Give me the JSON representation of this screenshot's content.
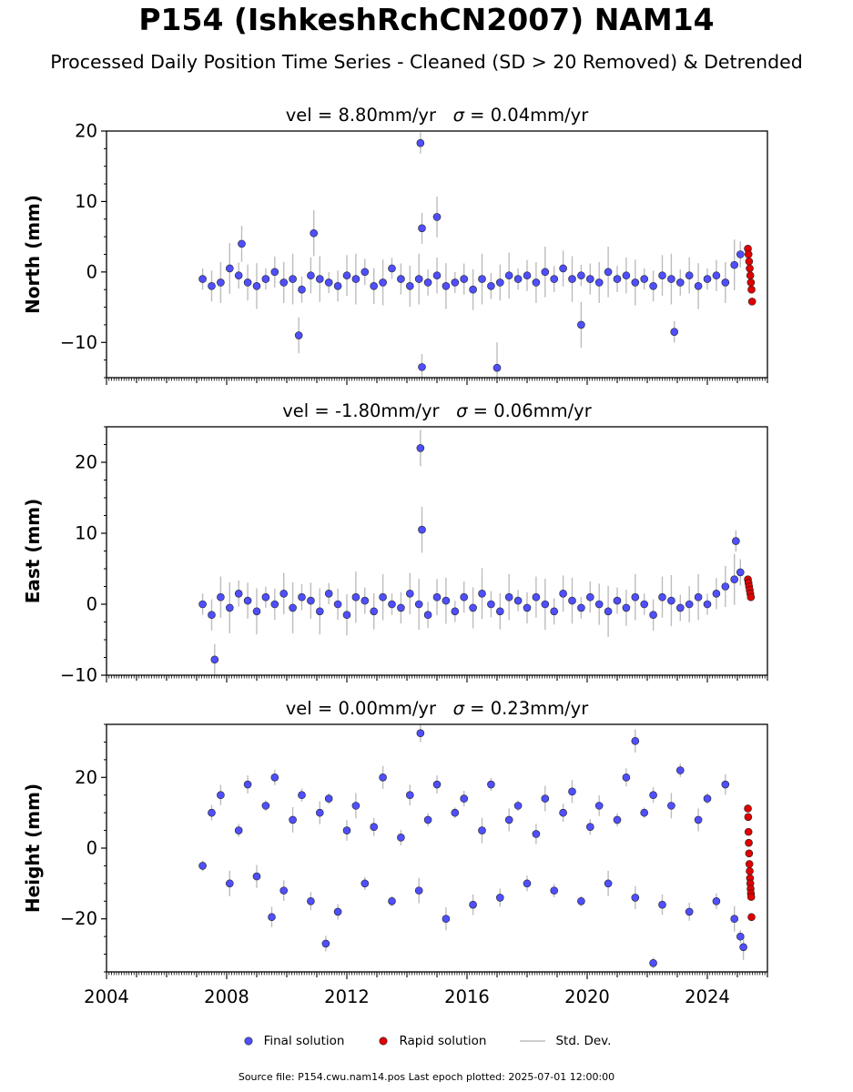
{
  "title": "P154 (IshkeshRchCN2007) NAM14",
  "subtitle": "Processed Daily Position Time Series - Cleaned (SD > 20 Removed) & Detrended",
  "source_line": "Source file: P154.cwu.nam14.pos  Last epoch plotted: 2025-07-01 12:00:00",
  "legend": {
    "final": "Final solution",
    "rapid": "Rapid solution",
    "std": "Std. Dev."
  },
  "colors": {
    "final": "#4f4fff",
    "final_edge": "#202020",
    "rapid": "#e00000",
    "std": "#bdbdbd"
  },
  "chart_data": [
    {
      "type": "scatter",
      "panel": "north",
      "title_prefix": "vel = 8.80mm/yr",
      "sigma_text": " = 0.04mm/yr",
      "ylabel": "North (mm)",
      "xlim": [
        2004,
        2026
      ],
      "ylim": [
        -15,
        20
      ],
      "yticks": [
        "−10",
        "0",
        "10",
        "20"
      ],
      "ytick_values": [
        -10,
        0,
        10,
        20
      ],
      "series": [
        {
          "name": "Final solution",
          "x": [
            2007.2,
            2007.5,
            2007.8,
            2008.1,
            2008.4,
            2008.7,
            2009.0,
            2009.3,
            2009.6,
            2009.9,
            2010.2,
            2010.5,
            2010.8,
            2011.1,
            2011.4,
            2011.7,
            2012.0,
            2012.3,
            2012.6,
            2012.9,
            2013.2,
            2013.5,
            2013.8,
            2014.1,
            2014.4,
            2014.7,
            2015.0,
            2015.3,
            2015.6,
            2015.9,
            2016.2,
            2016.5,
            2016.8,
            2017.1,
            2017.4,
            2017.7,
            2018.0,
            2018.3,
            2018.6,
            2018.9,
            2019.2,
            2019.5,
            2019.8,
            2020.1,
            2020.4,
            2020.7,
            2021.0,
            2021.3,
            2021.6,
            2021.9,
            2022.2,
            2022.5,
            2022.8,
            2023.1,
            2023.4,
            2023.7,
            2024.0,
            2024.3,
            2024.6,
            2024.9,
            2025.1,
            2008.5,
            2010.9,
            2014.45,
            2014.5,
            2015.0,
            2017.0,
            2014.5,
            2010.4,
            2019.8,
            2022.9
          ],
          "y": [
            -1.0,
            -2.0,
            -1.5,
            0.5,
            -0.5,
            -1.5,
            -2.0,
            -1.0,
            0.0,
            -1.5,
            -1.0,
            -2.5,
            -0.5,
            -1.0,
            -1.5,
            -2.0,
            -0.5,
            -1.0,
            0.0,
            -2.0,
            -1.5,
            0.5,
            -1.0,
            -2.0,
            -1.0,
            -1.5,
            -0.5,
            -2.0,
            -1.5,
            -1.0,
            -2.5,
            -1.0,
            -2.0,
            -1.5,
            -0.5,
            -1.0,
            -0.5,
            -1.5,
            0.0,
            -1.0,
            0.5,
            -1.0,
            -0.5,
            -1.0,
            -1.5,
            0.0,
            -1.0,
            -0.5,
            -1.5,
            -1.0,
            -2.0,
            -0.5,
            -1.0,
            -1.5,
            -0.5,
            -2.0,
            -1.0,
            -0.5,
            -1.5,
            1.0,
            2.5,
            4.0,
            5.5,
            18.3,
            6.2,
            7.8,
            -13.6,
            -13.5,
            -9.0,
            -7.5,
            -8.5
          ]
        },
        {
          "name": "Rapid solution",
          "x": [
            2025.35,
            2025.37,
            2025.39,
            2025.41,
            2025.43,
            2025.45,
            2025.47,
            2025.49
          ],
          "y": [
            3.3,
            2.5,
            1.5,
            0.5,
            -0.5,
            -1.5,
            -2.5,
            -4.2
          ]
        }
      ]
    },
    {
      "type": "scatter",
      "panel": "east",
      "title_prefix": "vel = -1.80mm/yr",
      "sigma_text": " = 0.06mm/yr",
      "ylabel": "East (mm)",
      "xlim": [
        2004,
        2026
      ],
      "ylim": [
        -10,
        25
      ],
      "yticks": [
        "−10",
        "0",
        "10",
        "20"
      ],
      "ytick_values": [
        -10,
        0,
        10,
        20
      ],
      "series": [
        {
          "name": "Final solution",
          "x": [
            2007.2,
            2007.5,
            2007.8,
            2008.1,
            2008.4,
            2008.7,
            2009.0,
            2009.3,
            2009.6,
            2009.9,
            2010.2,
            2010.5,
            2010.8,
            2011.1,
            2011.4,
            2011.7,
            2012.0,
            2012.3,
            2012.6,
            2012.9,
            2013.2,
            2013.5,
            2013.8,
            2014.1,
            2014.4,
            2014.7,
            2015.0,
            2015.3,
            2015.6,
            2015.9,
            2016.2,
            2016.5,
            2016.8,
            2017.1,
            2017.4,
            2017.7,
            2018.0,
            2018.3,
            2018.6,
            2018.9,
            2019.2,
            2019.5,
            2019.8,
            2020.1,
            2020.4,
            2020.7,
            2021.0,
            2021.3,
            2021.6,
            2021.9,
            2022.2,
            2022.5,
            2022.8,
            2023.1,
            2023.4,
            2023.7,
            2024.0,
            2024.3,
            2024.6,
            2024.9,
            2025.1,
            2014.45,
            2014.5,
            2024.95,
            2007.6
          ],
          "y": [
            0.0,
            -1.5,
            1.0,
            -0.5,
            1.5,
            0.5,
            -1.0,
            1.0,
            0.0,
            1.5,
            -0.5,
            1.0,
            0.5,
            -1.0,
            1.5,
            0.0,
            -1.5,
            1.0,
            0.5,
            -1.0,
            1.0,
            0.0,
            -0.5,
            1.5,
            0.0,
            -1.5,
            1.0,
            0.5,
            -1.0,
            1.0,
            -0.5,
            1.5,
            0.0,
            -1.0,
            1.0,
            0.5,
            -0.5,
            1.0,
            0.0,
            -1.0,
            1.5,
            0.5,
            -0.5,
            1.0,
            0.0,
            -1.0,
            0.5,
            -0.5,
            1.0,
            0.0,
            -1.5,
            1.0,
            0.5,
            -0.5,
            0.0,
            1.0,
            0.0,
            1.5,
            2.5,
            3.5,
            4.5,
            22.0,
            10.5,
            8.9,
            -7.8
          ]
        },
        {
          "name": "Rapid solution",
          "x": [
            2025.35,
            2025.37,
            2025.39,
            2025.41,
            2025.43,
            2025.45
          ],
          "y": [
            3.5,
            3.0,
            2.5,
            2.0,
            1.5,
            1.0
          ]
        }
      ]
    },
    {
      "type": "scatter",
      "panel": "height",
      "title_prefix": "vel = 0.00mm/yr",
      "sigma_text": " = 0.23mm/yr",
      "ylabel": "Height (mm)",
      "xlim": [
        2004,
        2026
      ],
      "ylim": [
        -35,
        35
      ],
      "yticks": [
        "−20",
        "0",
        "20"
      ],
      "ytick_values": [
        -20,
        0,
        20
      ],
      "series": [
        {
          "name": "Final solution",
          "x": [
            2007.2,
            2007.5,
            2007.8,
            2008.1,
            2008.4,
            2008.7,
            2009.0,
            2009.3,
            2009.6,
            2009.9,
            2010.2,
            2010.5,
            2010.8,
            2011.1,
            2011.4,
            2011.7,
            2012.0,
            2012.3,
            2012.6,
            2012.9,
            2013.2,
            2013.5,
            2013.8,
            2014.1,
            2014.4,
            2014.7,
            2015.0,
            2015.3,
            2015.6,
            2015.9,
            2016.2,
            2016.5,
            2016.8,
            2017.1,
            2017.4,
            2017.7,
            2018.0,
            2018.3,
            2018.6,
            2018.9,
            2019.2,
            2019.5,
            2019.8,
            2020.1,
            2020.4,
            2020.7,
            2021.0,
            2021.3,
            2021.6,
            2021.9,
            2022.2,
            2022.5,
            2022.8,
            2023.1,
            2023.4,
            2023.7,
            2024.0,
            2024.3,
            2024.6,
            2024.9,
            2025.1,
            2014.45,
            2021.6,
            2022.2,
            2011.3,
            2009.5,
            2025.2
          ],
          "y": [
            -5.0,
            10.0,
            15.0,
            -10.0,
            5.0,
            18.0,
            -8.0,
            12.0,
            20.0,
            -12.0,
            8.0,
            15.0,
            -15.0,
            10.0,
            14.0,
            -18.0,
            5.0,
            12.0,
            -10.0,
            6.0,
            20.0,
            -15.0,
            3.0,
            15.0,
            -12.0,
            8.0,
            18.0,
            -20.0,
            10.0,
            14.0,
            -16.0,
            5.0,
            18.0,
            -14.0,
            8.0,
            12.0,
            -10.0,
            4.0,
            14.0,
            -12.0,
            10.0,
            16.0,
            -15.0,
            6.0,
            12.0,
            -10.0,
            8.0,
            20.0,
            -14.0,
            10.0,
            15.0,
            -16.0,
            12.0,
            22.0,
            -18.0,
            8.0,
            14.0,
            -15.0,
            18.0,
            -20.0,
            -25.0,
            32.5,
            30.3,
            -32.5,
            -27.0,
            -19.5,
            -28.0
          ]
        },
        {
          "name": "Rapid solution",
          "x": [
            2025.35,
            2025.36,
            2025.37,
            2025.38,
            2025.39,
            2025.4,
            2025.41,
            2025.42,
            2025.43,
            2025.44,
            2025.45,
            2025.46,
            2025.47
          ],
          "y": [
            11.2,
            8.8,
            4.6,
            1.5,
            -1.5,
            -4.5,
            -6.5,
            -8.5,
            -10.0,
            -11.5,
            -12.8,
            -13.8,
            -19.5
          ]
        }
      ]
    }
  ],
  "xticks": [
    "2004",
    "2008",
    "2012",
    "2016",
    "2020",
    "2024"
  ],
  "xtick_values": [
    2004,
    2008,
    2012,
    2016,
    2020,
    2024
  ]
}
